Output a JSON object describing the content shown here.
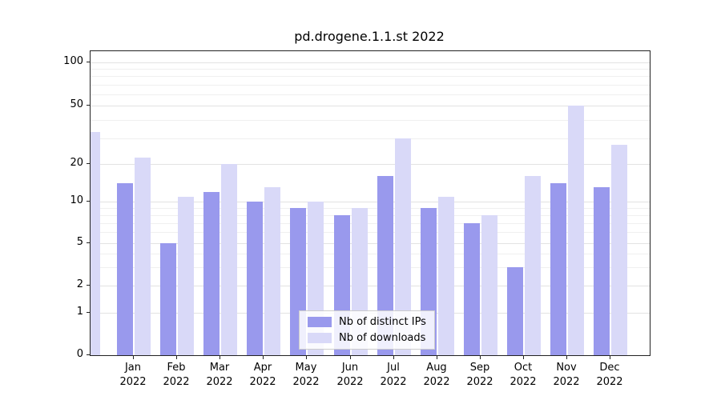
{
  "chart_data": {
    "type": "bar",
    "title": "pd.drogene.1.1.st 2022",
    "year": "2022",
    "months": [
      "Jan",
      "Feb",
      "Mar",
      "Apr",
      "May",
      "Jun",
      "Jul",
      "Aug",
      "Sep",
      "Oct",
      "Nov",
      "Dec"
    ],
    "series": [
      {
        "name": "Nb of distinct IPs",
        "color": "#9999ed",
        "values": [
          14,
          5,
          12,
          10,
          9,
          8,
          16,
          9,
          7,
          3,
          14,
          13
        ]
      },
      {
        "name": "Nb of downloads",
        "color": "#d9d9f8",
        "values": [
          22,
          11,
          20,
          13,
          10,
          9,
          30,
          11,
          8,
          16,
          50,
          27
        ]
      }
    ],
    "y_ticks": [
      0,
      1,
      2,
      5,
      10,
      20,
      50,
      100
    ],
    "minor_gridlines": [
      3,
      4,
      6,
      7,
      8,
      9,
      30,
      40,
      60,
      70,
      80,
      90
    ],
    "scale": "symlog",
    "scale_anchors": [
      [
        1,
        0.139
      ],
      [
        2,
        0.229
      ],
      [
        5,
        0.368
      ],
      [
        10,
        0.505
      ],
      [
        20,
        0.629
      ],
      [
        50,
        0.821
      ],
      [
        100,
        0.963
      ]
    ],
    "grid": "on",
    "legend_position": "bottom-center",
    "clipped_left_bar": {
      "series": "Nb of downloads",
      "value": 33
    }
  },
  "colors": {
    "axis": "#222222",
    "grid_major": "#e3e3e3",
    "grid_minor": "#f0f0f0",
    "legend_border": "#cccccc"
  }
}
